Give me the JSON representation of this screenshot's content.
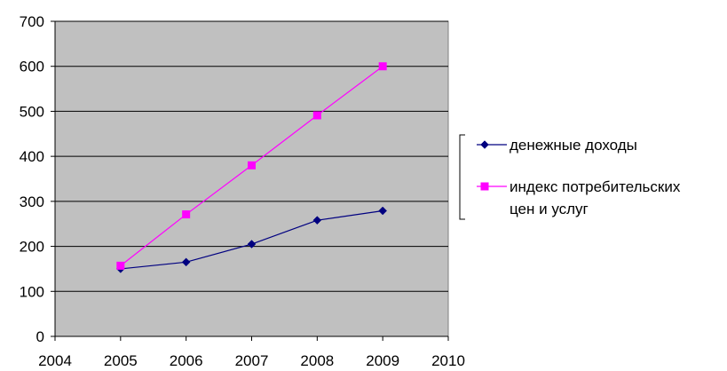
{
  "chart_data": {
    "type": "line",
    "title": "",
    "xlabel": "",
    "ylabel": "",
    "xlim": [
      2004,
      2010
    ],
    "ylim": [
      0,
      700
    ],
    "x_ticks": [
      2004,
      2005,
      2006,
      2007,
      2008,
      2009,
      2010
    ],
    "y_ticks": [
      0,
      100,
      200,
      300,
      400,
      500,
      600,
      700
    ],
    "grid": "horizontal",
    "plot_background": "#c0c0c0",
    "legend_position": "right",
    "series": [
      {
        "name": "денежные доходы",
        "color": "#000080",
        "marker": "diamond",
        "x": [
          2005,
          2006,
          2007,
          2008,
          2009
        ],
        "values": [
          150,
          165,
          205,
          258,
          279
        ]
      },
      {
        "name_lines": [
          "индекс потребительских",
          "цен и услуг"
        ],
        "color": "#ff00ff",
        "marker": "square",
        "x": [
          2005,
          2006,
          2007,
          2008,
          2009
        ],
        "values": [
          157,
          271,
          380,
          491,
          600
        ]
      }
    ]
  }
}
